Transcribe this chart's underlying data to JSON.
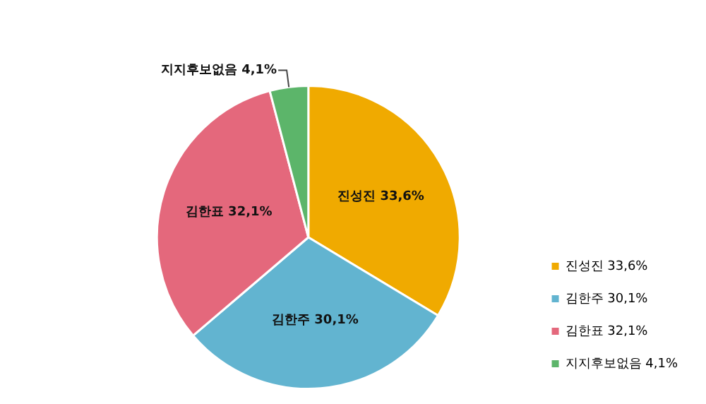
{
  "chart_data": {
    "type": "pie",
    "categories": [
      "진성진",
      "김한주",
      "김한표",
      "지지후보없음"
    ],
    "values": [
      33.6,
      30.1,
      32.1,
      4.1
    ],
    "value_labels": [
      "33,6%",
      "30,1%",
      "32,1%",
      "4,1%"
    ],
    "colors": [
      "#f0aa00",
      "#62b4d0",
      "#e4687c",
      "#5cb56a"
    ],
    "legend": "bottom right"
  }
}
